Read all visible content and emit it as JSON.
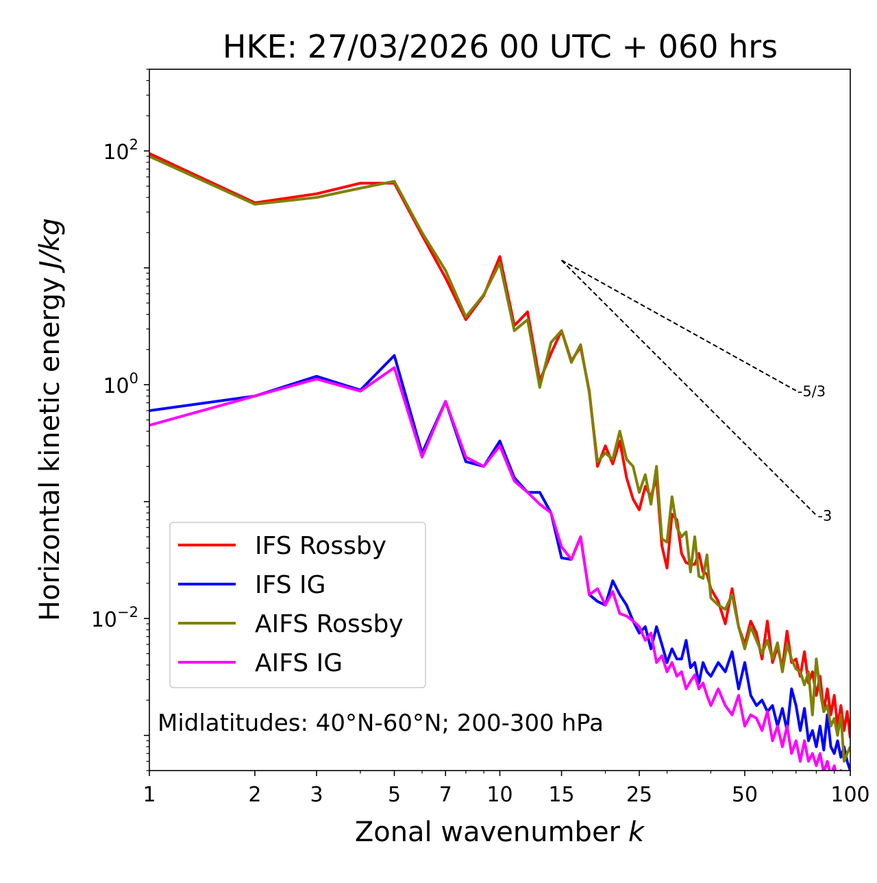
{
  "chart_data": {
    "type": "line",
    "title": "HKE: 27/03/2026 00 UTC + 060 hrs",
    "xlabel": "Zonal wavenumber",
    "xlabel_italic": "k",
    "ylabel": "Horizontal kinetic energy",
    "ylabel_italic": "J/kg",
    "xscale": "log",
    "yscale": "log",
    "xlim": [
      1,
      100
    ],
    "ylim": [
      0.0005,
      500
    ],
    "xticks": [
      1,
      2,
      3,
      5,
      7,
      10,
      15,
      25,
      50,
      100
    ],
    "xtick_labels": [
      "1",
      "2",
      "3",
      "5",
      "7",
      "10",
      "15",
      "25",
      "50",
      "100"
    ],
    "yticks": [
      {
        "value": 100,
        "base": "10",
        "exp": "2"
      },
      {
        "value": 1,
        "base": "10",
        "exp": "0"
      },
      {
        "value": 0.01,
        "base": "10",
        "exp": "−2"
      }
    ],
    "annotation": "Midlatitudes: 40°N-60°N; 200-300 hPa",
    "legend_position": "lower-left",
    "series": [
      {
        "name": "IFS Rossby",
        "color": "#ff0000",
        "x": [
          1,
          2,
          3,
          4,
          5,
          6,
          7,
          8,
          9,
          10,
          11,
          12,
          13,
          14,
          15,
          16,
          17,
          18,
          19,
          20,
          21,
          22,
          23,
          24,
          25,
          26,
          27,
          28,
          29,
          30,
          31,
          32,
          33,
          34,
          35,
          36,
          37,
          38,
          39,
          40,
          42,
          44,
          46,
          48,
          50,
          52,
          54,
          56,
          58,
          60,
          62,
          64,
          66,
          68,
          70,
          72,
          74,
          76,
          78,
          80,
          82,
          84,
          86,
          88,
          90,
          92,
          94,
          96,
          98,
          100
        ],
        "y": [
          95,
          36,
          43,
          53,
          53,
          19,
          8.2,
          3.6,
          5.8,
          12.5,
          3.2,
          4.2,
          1.08,
          1.85,
          2.9,
          1.6,
          2.1,
          0.88,
          0.2,
          0.3,
          0.21,
          0.33,
          0.16,
          0.105,
          0.085,
          0.135,
          0.11,
          0.16,
          0.042,
          0.027,
          0.078,
          0.07,
          0.036,
          0.03,
          0.029,
          0.029,
          0.036,
          0.025,
          0.024,
          0.018,
          0.014,
          0.009,
          0.018,
          0.0085,
          0.006,
          0.0095,
          0.0075,
          0.0045,
          0.0095,
          0.0042,
          0.0057,
          0.0038,
          0.0078,
          0.0042,
          0.0045,
          0.0032,
          0.0052,
          0.0028,
          0.0035,
          0.0022,
          0.0032,
          0.0016,
          0.0025,
          0.0015,
          0.0022,
          0.0012,
          0.0018,
          0.0011,
          0.0016,
          0.00095
        ]
      },
      {
        "name": "IFS IG",
        "color": "#0000ff",
        "x": [
          1,
          2,
          3,
          4,
          5,
          6,
          7,
          8,
          9,
          10,
          11,
          12,
          13,
          14,
          15,
          16,
          17,
          18,
          19,
          20,
          21,
          22,
          23,
          24,
          25,
          26,
          27,
          28,
          29,
          30,
          31,
          32,
          33,
          34,
          35,
          36,
          37,
          38,
          39,
          40,
          42,
          44,
          46,
          48,
          50,
          52,
          54,
          56,
          58,
          60,
          62,
          64,
          66,
          68,
          70,
          72,
          74,
          76,
          78,
          80,
          82,
          84,
          86,
          88,
          90,
          92,
          94,
          96,
          98,
          100
        ],
        "y": [
          0.6,
          0.8,
          1.18,
          0.9,
          1.78,
          0.26,
          0.72,
          0.22,
          0.2,
          0.33,
          0.16,
          0.12,
          0.12,
          0.08,
          0.033,
          0.032,
          0.05,
          0.016,
          0.014,
          0.013,
          0.021,
          0.016,
          0.013,
          0.0095,
          0.0075,
          0.0085,
          0.0055,
          0.0085,
          0.006,
          0.0042,
          0.0055,
          0.0045,
          0.0045,
          0.0065,
          0.0038,
          0.0042,
          0.0028,
          0.0042,
          0.0035,
          0.0032,
          0.0042,
          0.0035,
          0.0052,
          0.0025,
          0.0042,
          0.0022,
          0.0018,
          0.002,
          0.0016,
          0.0018,
          0.0012,
          0.0017,
          0.0011,
          0.0025,
          0.0018,
          0.0011,
          0.0017,
          0.0009,
          0.0011,
          0.0008,
          0.0012,
          0.00075,
          0.0015,
          0.0008,
          0.0007,
          0.0009,
          0.00065,
          0.0008,
          0.0006,
          0.0005
        ]
      },
      {
        "name": "AIFS Rossby",
        "color": "#808000",
        "x": [
          1,
          2,
          3,
          4,
          5,
          6,
          7,
          8,
          9,
          10,
          11,
          12,
          13,
          14,
          15,
          16,
          17,
          18,
          19,
          20,
          21,
          22,
          23,
          24,
          25,
          26,
          27,
          28,
          29,
          30,
          31,
          32,
          33,
          34,
          35,
          36,
          37,
          38,
          39,
          40,
          42,
          44,
          46,
          48,
          50,
          52,
          54,
          56,
          58,
          60,
          62,
          64,
          66,
          68,
          70,
          72,
          74,
          76,
          78,
          80,
          82,
          84,
          86,
          88,
          90,
          92,
          94,
          96,
          98,
          100
        ],
        "y": [
          90,
          35,
          40,
          48,
          55,
          20,
          9.5,
          3.8,
          5.9,
          11,
          2.9,
          3.6,
          0.95,
          2.3,
          2.9,
          1.55,
          2.2,
          0.85,
          0.22,
          0.26,
          0.23,
          0.4,
          0.23,
          0.2,
          0.12,
          0.17,
          0.095,
          0.2,
          0.048,
          0.045,
          0.11,
          0.06,
          0.05,
          0.055,
          0.025,
          0.05,
          0.023,
          0.022,
          0.035,
          0.015,
          0.013,
          0.012,
          0.016,
          0.0085,
          0.0055,
          0.0085,
          0.0065,
          0.005,
          0.0065,
          0.0045,
          0.0062,
          0.0035,
          0.006,
          0.0045,
          0.0037,
          0.0035,
          0.0027,
          0.0035,
          0.0015,
          0.0045,
          0.0024,
          0.0016,
          0.0018,
          0.0012,
          0.0014,
          0.001,
          0.0015,
          0.0006,
          0.0007,
          0.0008
        ]
      },
      {
        "name": "AIFS IG",
        "color": "#ff00ff",
        "x": [
          1,
          2,
          3,
          4,
          5,
          6,
          7,
          8,
          9,
          10,
          11,
          12,
          13,
          14,
          15,
          16,
          17,
          18,
          19,
          20,
          21,
          22,
          23,
          24,
          25,
          26,
          27,
          28,
          29,
          30,
          31,
          32,
          33,
          34,
          35,
          36,
          37,
          38,
          39,
          40,
          42,
          44,
          46,
          48,
          50,
          52,
          54,
          56,
          58,
          60,
          62,
          64,
          66,
          68,
          70,
          72,
          74,
          76,
          78,
          80,
          82,
          84,
          86,
          88,
          90,
          92,
          94,
          96,
          98,
          100
        ],
        "y": [
          0.45,
          0.8,
          1.12,
          0.88,
          1.4,
          0.24,
          0.72,
          0.24,
          0.2,
          0.3,
          0.15,
          0.12,
          0.095,
          0.08,
          0.041,
          0.032,
          0.05,
          0.016,
          0.018,
          0.013,
          0.017,
          0.011,
          0.0105,
          0.0095,
          0.0085,
          0.0065,
          0.0075,
          0.0042,
          0.0048,
          0.0035,
          0.0042,
          0.0032,
          0.0035,
          0.0025,
          0.0029,
          0.0033,
          0.0025,
          0.0028,
          0.0022,
          0.0018,
          0.0025,
          0.0018,
          0.0015,
          0.0022,
          0.0012,
          0.0015,
          0.0014,
          0.0011,
          0.0016,
          0.0009,
          0.0012,
          0.0008,
          0.0012,
          0.0007,
          0.0009,
          0.0006,
          0.0009,
          0.0006,
          0.0007,
          0.00055,
          0.0007,
          0.00048,
          0.0006,
          0.00045,
          0.00055,
          0.00042,
          0.0005,
          0.0004,
          0.00045,
          0.0004
        ]
      }
    ],
    "reference_lines": [
      {
        "label": "-5/3",
        "slope": -1.6667,
        "x_start": 15,
        "y_start": 11.6,
        "x_end": 70,
        "color": "#000000",
        "style": "dashed"
      },
      {
        "label": "-3",
        "slope": -3,
        "x_start": 15,
        "y_start": 11.6,
        "x_end": 80,
        "color": "#000000",
        "style": "dashed"
      }
    ]
  }
}
